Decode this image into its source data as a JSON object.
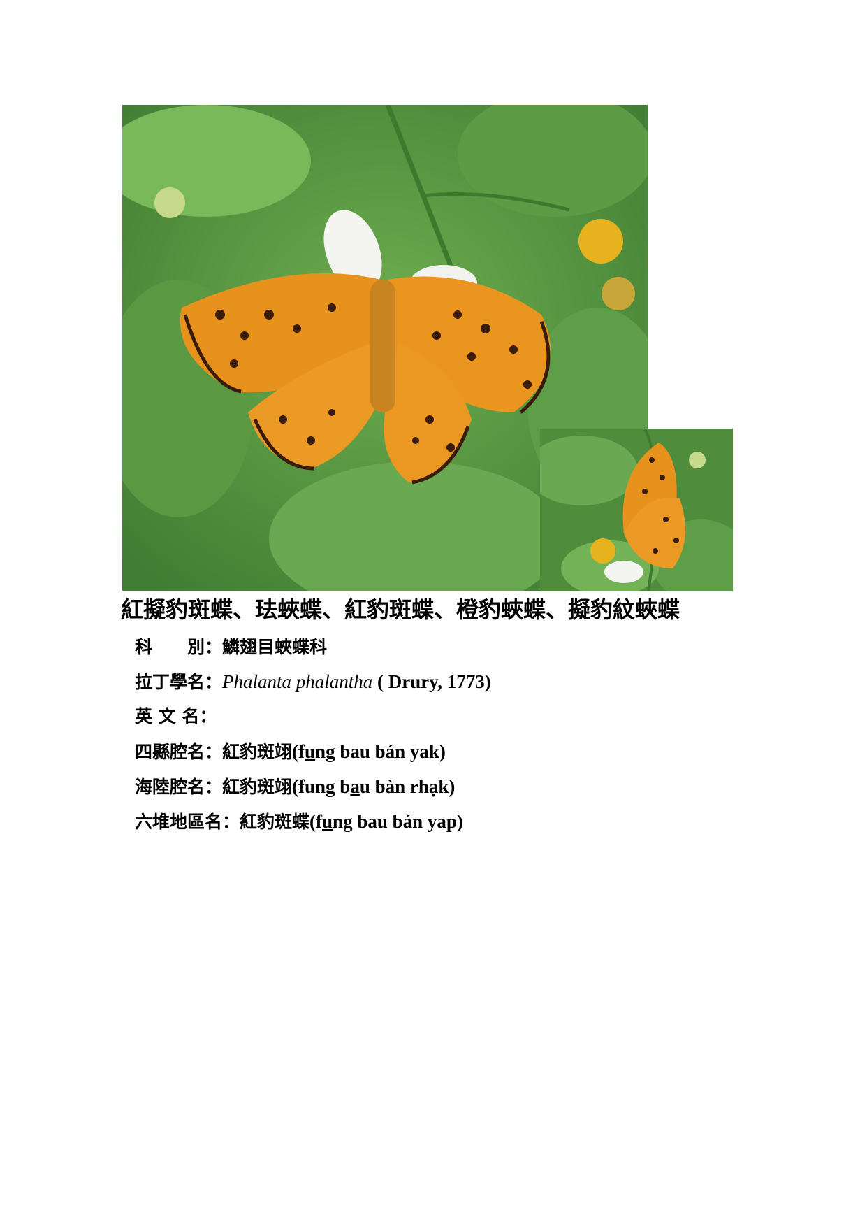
{
  "title": "紅擬豹斑蝶、珐蛺蝶、紅豹斑蝶、橙豹蛺蝶、擬豹紋蛺蝶",
  "rows": {
    "family": {
      "label": "科　　別：",
      "value": "鱗翅目蛺蝶科"
    },
    "latin": {
      "label": "拉丁學名：",
      "genus_species": "Phalanta phalantha",
      "author": " ( Drury, 1773)"
    },
    "english": {
      "label": "英 文 名："
    },
    "sixian": {
      "label": "四縣腔名：",
      "cn": "紅豹斑翊",
      "open": "(f",
      "u1": "u",
      "rest": "ng bau bán yak)"
    },
    "hailu": {
      "label": "海陸腔名：",
      "cn": "紅豹斑翊",
      "pre": "(fung b",
      "u1": "a",
      "rest": "u bàn rhạk)"
    },
    "liudui": {
      "label": "六堆地區名：",
      "cn": "紅豹斑蝶",
      "open": "(f",
      "u1": "u",
      "rest": "ng bau bán yap)"
    }
  },
  "photos": {
    "main": "butterfly-open-wings-photo",
    "side": "butterfly-closed-wings-photo",
    "colors": {
      "leaf": "#5f9a45",
      "wing": "#e8921e",
      "spot": "#3a1c0c"
    }
  }
}
